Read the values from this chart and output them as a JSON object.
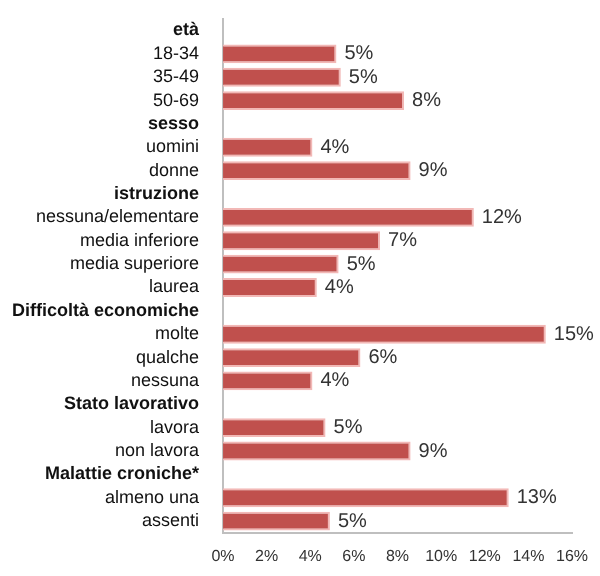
{
  "chart_data": {
    "type": "bar",
    "orientation": "horizontal",
    "categories": [
      "età",
      "18-34",
      "35-49",
      "50-69",
      "sesso",
      "uomini",
      "donne",
      "istruzione",
      "nessuna/elementare",
      "media inferiore",
      "media superiore",
      "laurea",
      "Difficoltà economiche",
      "molte",
      "qualche",
      "nessuna",
      "Stato lavorativo",
      "lavora",
      "non lavora",
      "Malattie croniche*",
      "almeno una",
      "assenti"
    ],
    "values": [
      null,
      5.2,
      5.4,
      8.3,
      null,
      4.1,
      8.6,
      null,
      11.5,
      7.2,
      5.3,
      4.3,
      null,
      14.8,
      6.3,
      4.1,
      null,
      4.7,
      8.6,
      null,
      13.1,
      4.9
    ],
    "value_labels": [
      null,
      "5%",
      "5%",
      "8%",
      null,
      "4%",
      "9%",
      null,
      "12%",
      "7%",
      "5%",
      "4%",
      null,
      "15%",
      "6%",
      "4%",
      null,
      "5%",
      "9%",
      null,
      "13%",
      "5%"
    ],
    "color": "#c0504d",
    "xlim": [
      0,
      16
    ],
    "xticks": [
      {
        "value": 0,
        "label": "0%"
      },
      {
        "value": 2,
        "label": "2%"
      },
      {
        "value": 4,
        "label": "4%"
      },
      {
        "value": 6,
        "label": "6%"
      },
      {
        "value": 8,
        "label": "8%"
      },
      {
        "value": 10,
        "label": "10%"
      },
      {
        "value": 12,
        "label": "12%"
      },
      {
        "value": 14,
        "label": "14%"
      },
      {
        "value": 16,
        "label": "16%"
      }
    ],
    "grid": false,
    "legend": false
  }
}
